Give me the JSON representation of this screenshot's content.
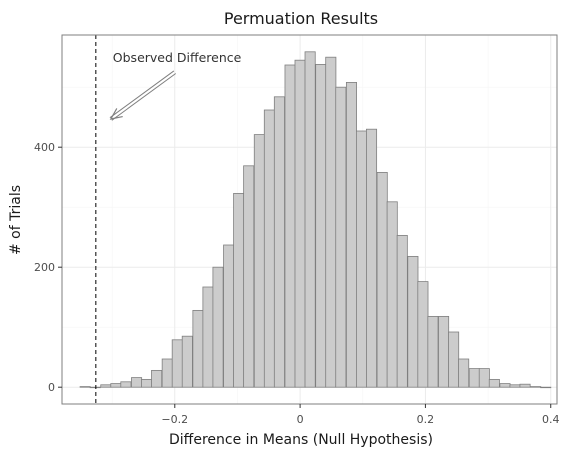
{
  "chart_data": {
    "type": "bar",
    "subtype": "histogram",
    "title": "Permuation Results",
    "xlabel": "Difference in Means (Null Hypothesis)",
    "ylabel": "# of Trials",
    "xlim": [
      -0.38,
      0.41
    ],
    "ylim": [
      -28,
      587
    ],
    "x_ticks": [
      -0.2,
      0,
      0.2,
      0.4
    ],
    "x_tick_labels": [
      "−0.2",
      "0",
      "0.2",
      "0.4"
    ],
    "y_ticks": [
      0,
      200,
      400
    ],
    "y_tick_labels": [
      "0",
      "200",
      "400"
    ],
    "grid": true,
    "legend": "none",
    "bin_width": 0.0163,
    "bins": [
      {
        "x": -0.343,
        "count": 1
      },
      {
        "x": -0.327,
        "count": 0
      },
      {
        "x": -0.31,
        "count": 4
      },
      {
        "x": -0.294,
        "count": 6
      },
      {
        "x": -0.278,
        "count": 9
      },
      {
        "x": -0.261,
        "count": 16
      },
      {
        "x": -0.245,
        "count": 13
      },
      {
        "x": -0.229,
        "count": 28
      },
      {
        "x": -0.212,
        "count": 47
      },
      {
        "x": -0.196,
        "count": 79
      },
      {
        "x": -0.18,
        "count": 85
      },
      {
        "x": -0.163,
        "count": 128
      },
      {
        "x": -0.147,
        "count": 167
      },
      {
        "x": -0.131,
        "count": 200
      },
      {
        "x": -0.114,
        "count": 237
      },
      {
        "x": -0.098,
        "count": 323
      },
      {
        "x": -0.082,
        "count": 369
      },
      {
        "x": -0.065,
        "count": 421
      },
      {
        "x": -0.049,
        "count": 462
      },
      {
        "x": -0.033,
        "count": 484
      },
      {
        "x": -0.016,
        "count": 537
      },
      {
        "x": 0.0,
        "count": 545
      },
      {
        "x": 0.016,
        "count": 559
      },
      {
        "x": 0.033,
        "count": 538
      },
      {
        "x": 0.049,
        "count": 550
      },
      {
        "x": 0.065,
        "count": 500
      },
      {
        "x": 0.082,
        "count": 508
      },
      {
        "x": 0.098,
        "count": 427
      },
      {
        "x": 0.114,
        "count": 430
      },
      {
        "x": 0.131,
        "count": 358
      },
      {
        "x": 0.147,
        "count": 309
      },
      {
        "x": 0.163,
        "count": 253
      },
      {
        "x": 0.18,
        "count": 218
      },
      {
        "x": 0.196,
        "count": 176
      },
      {
        "x": 0.212,
        "count": 118
      },
      {
        "x": 0.229,
        "count": 118
      },
      {
        "x": 0.245,
        "count": 92
      },
      {
        "x": 0.261,
        "count": 47
      },
      {
        "x": 0.278,
        "count": 31
      },
      {
        "x": 0.294,
        "count": 31
      },
      {
        "x": 0.31,
        "count": 13
      },
      {
        "x": 0.327,
        "count": 6
      },
      {
        "x": 0.343,
        "count": 4
      },
      {
        "x": 0.359,
        "count": 5
      },
      {
        "x": 0.376,
        "count": 1
      },
      {
        "x": 0.392,
        "count": 0
      }
    ],
    "reference_line": {
      "x": -0.326,
      "style": "dashed"
    },
    "annotation": {
      "text": "Observed Difference",
      "arrow_from": [
        -0.2,
        525
      ],
      "arrow_to": [
        -0.302,
        447
      ]
    },
    "colors": {
      "bar_fill": "#cccccc",
      "bar_edge": "#7f7f7f",
      "grid_major": "#ebebeb",
      "grid_minor": "#f5f5f5",
      "panel_border": "#7f7f7f",
      "arrow": "#7f7f7f"
    }
  }
}
